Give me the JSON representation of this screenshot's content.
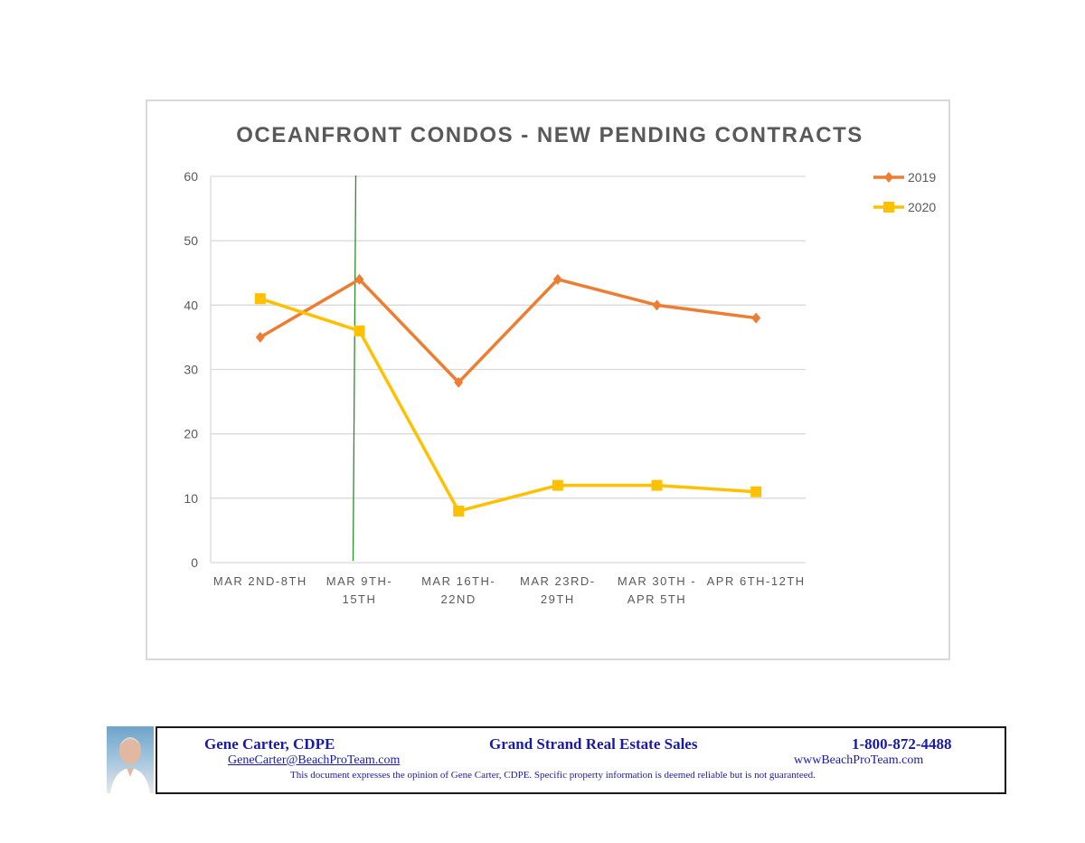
{
  "chart_data": {
    "type": "line",
    "title": "OCEANFRONT CONDOS - NEW PENDING CONTRACTS",
    "categories": [
      [
        "MAR 2ND-8TH"
      ],
      [
        "MAR 9TH-",
        "15TH"
      ],
      [
        "MAR 16TH-",
        "22ND"
      ],
      [
        "MAR 23RD-",
        "29TH"
      ],
      [
        "MAR 30TH -",
        "APR 5TH"
      ],
      [
        "APR 6TH-12TH"
      ]
    ],
    "series": [
      {
        "name": "2019",
        "values": [
          35,
          44,
          28,
          44,
          40,
          38
        ],
        "color": "#ED7D31",
        "marker": "diamond"
      },
      {
        "name": "2020",
        "values": [
          41,
          36,
          8,
          12,
          12,
          11
        ],
        "color": "#FFC000",
        "marker": "square"
      }
    ],
    "ylim": [
      0,
      60
    ],
    "yticks": [
      0,
      10,
      20,
      30,
      40,
      50,
      60
    ],
    "grid": true,
    "legend_position": "top-right",
    "marker_line": {
      "category_index": 1,
      "color": "#2e8b2e"
    }
  },
  "footer": {
    "name": "Gene Carter, CDPE",
    "company": "Grand Strand Real Estate Sales",
    "phone": "1-800-872-4488",
    "email": "GeneCarter@BeachProTeam.com",
    "website": "wwwBeachProTeam.com",
    "disclaimer": "This document expresses the opinion of Gene Carter, CDPE.  Specific property information is deemed reliable but is not guaranteed."
  }
}
